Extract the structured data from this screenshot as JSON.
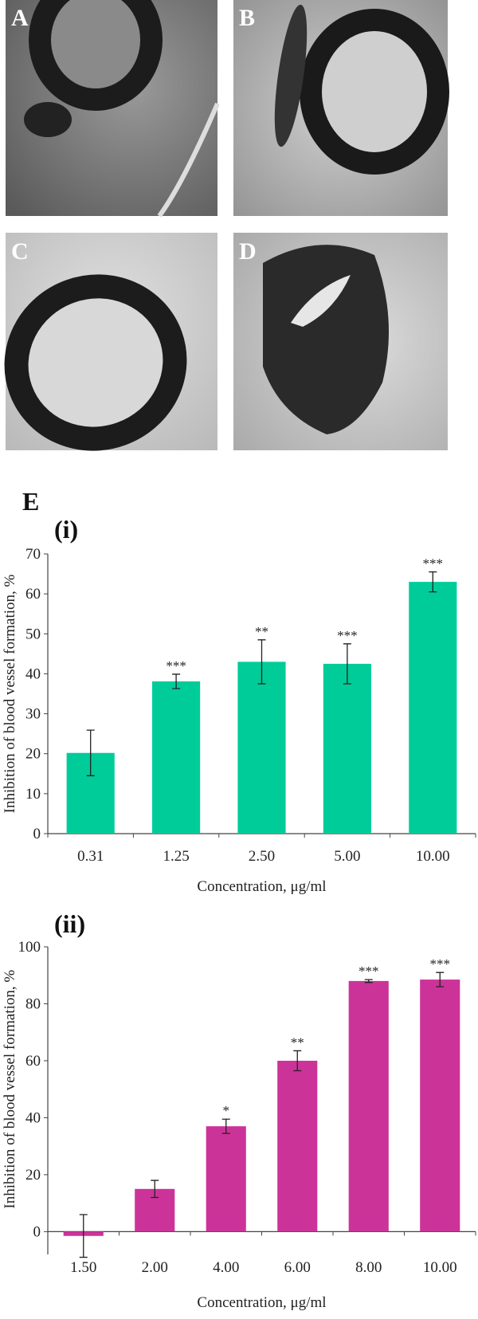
{
  "panels": {
    "labels": [
      "A",
      "B",
      "C",
      "D"
    ],
    "section_label": "E"
  },
  "chart_data": [
    {
      "type": "bar",
      "title": "(i)",
      "y_label": "Inhibition of blood vessel formation, %",
      "x_label": "Concentration, μg/ml",
      "categories": [
        "0.31",
        "1.25",
        "2.50",
        "5.00",
        "10.00"
      ],
      "values": [
        20.2,
        38.1,
        43.0,
        42.5,
        63.0
      ],
      "errors": [
        5.7,
        1.8,
        5.5,
        5.0,
        2.5
      ],
      "annotations": [
        null,
        "***",
        "**",
        "***",
        "***"
      ],
      "color": "#00cc99",
      "ylim": [
        0,
        70
      ],
      "yticks": [
        0,
        10,
        20,
        30,
        40,
        50,
        60,
        70
      ],
      "grid": false
    },
    {
      "type": "bar",
      "title": "(ii)",
      "y_label": "Inhibition of blood vessel formation, %",
      "x_label": "Concentration, μg/ml",
      "categories": [
        "1.50",
        "2.00",
        "4.00",
        "6.00",
        "8.00",
        "10.00"
      ],
      "values": [
        -1.5,
        15.0,
        37.0,
        60.0,
        88.0,
        88.5
      ],
      "errors": [
        7.5,
        3.0,
        2.5,
        3.5,
        0.5,
        2.5
      ],
      "annotations": [
        null,
        null,
        "*",
        "**",
        "***",
        "***"
      ],
      "color": "#cc3399",
      "ylim": [
        -8,
        100
      ],
      "yticks": [
        0,
        20,
        40,
        60,
        80,
        100
      ],
      "grid": false
    }
  ]
}
